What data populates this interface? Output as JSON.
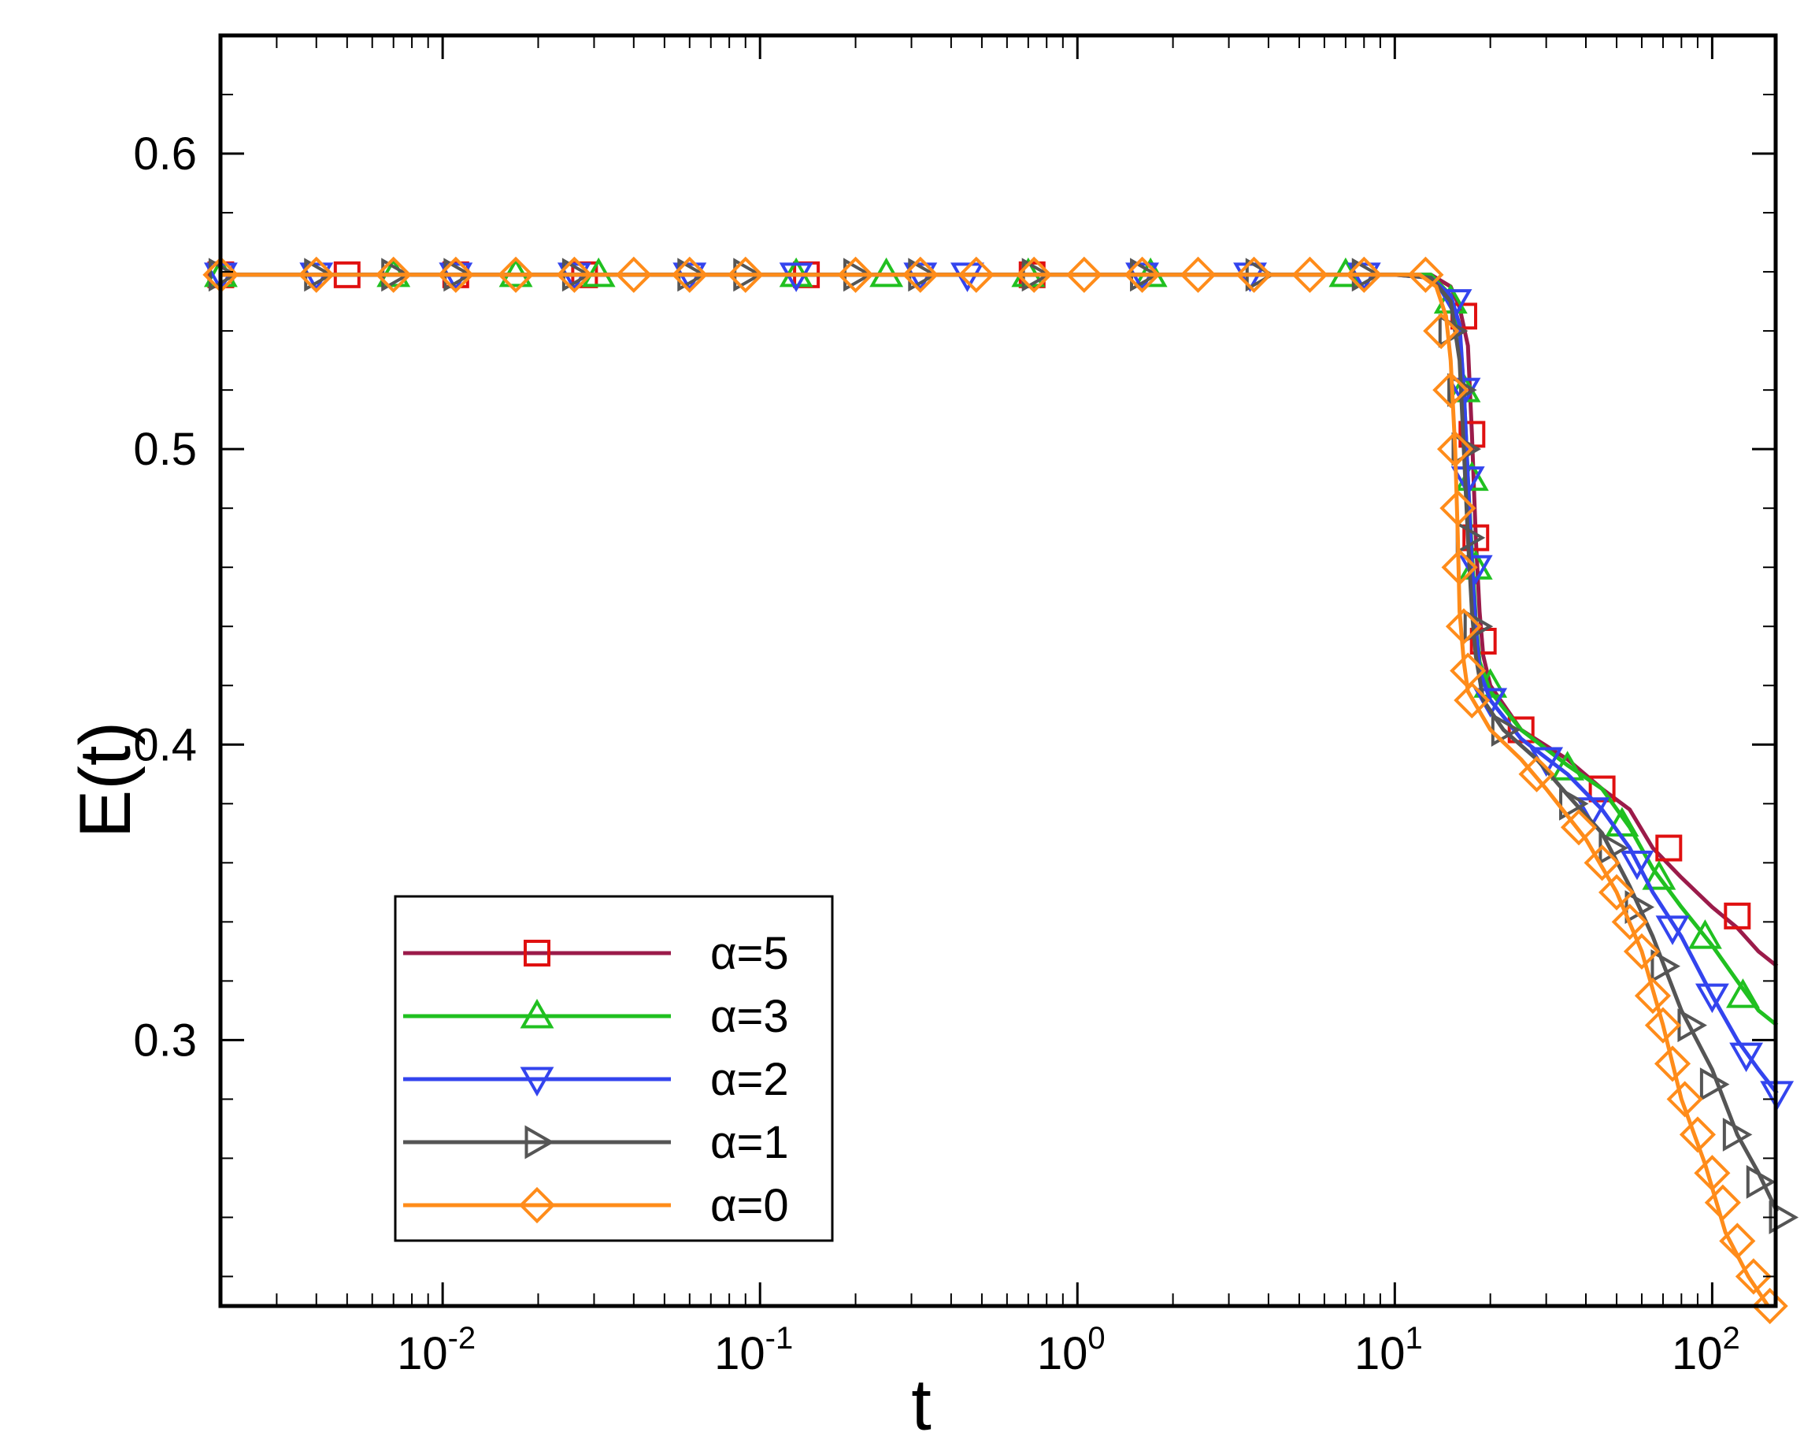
{
  "chart_data": {
    "type": "line",
    "title": "",
    "xlabel": "t",
    "ylabel": "E(t)",
    "xscale": "log",
    "xlim_exp": [
      -2.7,
      2.2
    ],
    "ylim": [
      0.21,
      0.64
    ],
    "grid": false,
    "legend_position": "bottom-left",
    "x_ticks": [
      {
        "base": "10",
        "exp": "-2",
        "value": 0.01
      },
      {
        "base": "10",
        "exp": "-1",
        "value": 0.1
      },
      {
        "base": "10",
        "exp": "0",
        "value": 1
      },
      {
        "base": "10",
        "exp": "1",
        "value": 10
      },
      {
        "base": "10",
        "exp": "2",
        "value": 100
      }
    ],
    "y_ticks": [
      {
        "label": "0.3",
        "value": 0.3
      },
      {
        "label": "0.4",
        "value": 0.4
      },
      {
        "label": "0.5",
        "value": 0.5
      },
      {
        "label": "0.6",
        "value": 0.6
      }
    ],
    "series": [
      {
        "name": "α=5",
        "color": "#9b1b4a",
        "marker_color": "#e01010",
        "marker": "square",
        "points": [
          [
            0.002,
            0.559
          ],
          [
            10,
            0.559
          ],
          [
            13,
            0.559
          ],
          [
            15,
            0.555
          ],
          [
            16,
            0.548
          ],
          [
            17,
            0.535
          ],
          [
            17.5,
            0.505
          ],
          [
            18,
            0.47
          ],
          [
            18.5,
            0.445
          ],
          [
            19,
            0.43
          ],
          [
            20,
            0.42
          ],
          [
            25,
            0.405
          ],
          [
            35,
            0.395
          ],
          [
            45,
            0.385
          ],
          [
            55,
            0.378
          ],
          [
            65,
            0.365
          ],
          [
            80,
            0.355
          ],
          [
            100,
            0.345
          ],
          [
            120,
            0.338
          ],
          [
            140,
            0.33
          ],
          [
            160,
            0.325
          ]
        ],
        "markers": [
          [
            0.002,
            0.559
          ],
          [
            0.005,
            0.559
          ],
          [
            0.011,
            0.559
          ],
          [
            0.028,
            0.559
          ],
          [
            0.14,
            0.559
          ],
          [
            0.72,
            0.559
          ],
          [
            16.5,
            0.545
          ],
          [
            17.5,
            0.505
          ],
          [
            18,
            0.47
          ],
          [
            19,
            0.435
          ],
          [
            25,
            0.405
          ],
          [
            45,
            0.385
          ],
          [
            73,
            0.365
          ],
          [
            120,
            0.342
          ]
        ]
      },
      {
        "name": "α=3",
        "color": "#20c020",
        "marker_color": "#20c020",
        "marker": "triangle-up",
        "points": [
          [
            0.002,
            0.559
          ],
          [
            10,
            0.559
          ],
          [
            13,
            0.559
          ],
          [
            15,
            0.552
          ],
          [
            16,
            0.54
          ],
          [
            16.5,
            0.52
          ],
          [
            17,
            0.49
          ],
          [
            17.5,
            0.465
          ],
          [
            18,
            0.442
          ],
          [
            18.5,
            0.428
          ],
          [
            20,
            0.418
          ],
          [
            25,
            0.405
          ],
          [
            35,
            0.393
          ],
          [
            45,
            0.385
          ],
          [
            55,
            0.372
          ],
          [
            65,
            0.358
          ],
          [
            80,
            0.345
          ],
          [
            100,
            0.332
          ],
          [
            120,
            0.32
          ],
          [
            140,
            0.31
          ],
          [
            160,
            0.305
          ]
        ],
        "markers": [
          [
            0.002,
            0.559
          ],
          [
            0.007,
            0.559
          ],
          [
            0.017,
            0.559
          ],
          [
            0.031,
            0.559
          ],
          [
            0.13,
            0.559
          ],
          [
            0.25,
            0.559
          ],
          [
            0.7,
            0.559
          ],
          [
            1.7,
            0.559
          ],
          [
            7,
            0.559
          ],
          [
            15,
            0.55
          ],
          [
            16.5,
            0.52
          ],
          [
            17.5,
            0.49
          ],
          [
            18,
            0.46
          ],
          [
            20,
            0.42
          ],
          [
            35,
            0.392
          ],
          [
            52,
            0.373
          ],
          [
            68,
            0.355
          ],
          [
            95,
            0.335
          ],
          [
            125,
            0.315
          ]
        ]
      },
      {
        "name": "α=2",
        "color": "#3344ee",
        "marker_color": "#3344ee",
        "marker": "triangle-down",
        "points": [
          [
            0.002,
            0.559
          ],
          [
            10,
            0.559
          ],
          [
            13,
            0.558
          ],
          [
            15,
            0.552
          ],
          [
            16,
            0.542
          ],
          [
            16.5,
            0.52
          ],
          [
            17,
            0.49
          ],
          [
            17.5,
            0.46
          ],
          [
            18,
            0.44
          ],
          [
            18.5,
            0.425
          ],
          [
            20,
            0.415
          ],
          [
            25,
            0.402
          ],
          [
            35,
            0.39
          ],
          [
            45,
            0.378
          ],
          [
            55,
            0.365
          ],
          [
            65,
            0.35
          ],
          [
            80,
            0.335
          ],
          [
            100,
            0.315
          ],
          [
            120,
            0.3
          ],
          [
            140,
            0.29
          ],
          [
            160,
            0.282
          ]
        ],
        "markers": [
          [
            0.002,
            0.559
          ],
          [
            0.004,
            0.559
          ],
          [
            0.011,
            0.559
          ],
          [
            0.026,
            0.559
          ],
          [
            0.06,
            0.559
          ],
          [
            0.13,
            0.559
          ],
          [
            0.32,
            0.559
          ],
          [
            0.45,
            0.559
          ],
          [
            1.6,
            0.559
          ],
          [
            3.5,
            0.559
          ],
          [
            8,
            0.559
          ],
          [
            15.5,
            0.55
          ],
          [
            16.5,
            0.52
          ],
          [
            17,
            0.49
          ],
          [
            18,
            0.46
          ],
          [
            20,
            0.415
          ],
          [
            30,
            0.395
          ],
          [
            42,
            0.378
          ],
          [
            58,
            0.36
          ],
          [
            75,
            0.338
          ],
          [
            100,
            0.315
          ],
          [
            128,
            0.295
          ],
          [
            160,
            0.282
          ]
        ]
      },
      {
        "name": "α=1",
        "color": "#555555",
        "marker_color": "#555555",
        "marker": "triangle-right",
        "points": [
          [
            0.002,
            0.559
          ],
          [
            10,
            0.559
          ],
          [
            13,
            0.558
          ],
          [
            15,
            0.55
          ],
          [
            16,
            0.53
          ],
          [
            16.5,
            0.5
          ],
          [
            17,
            0.47
          ],
          [
            17.5,
            0.445
          ],
          [
            18,
            0.43
          ],
          [
            19,
            0.415
          ],
          [
            22,
            0.405
          ],
          [
            28,
            0.395
          ],
          [
            35,
            0.383
          ],
          [
            45,
            0.37
          ],
          [
            55,
            0.352
          ],
          [
            65,
            0.335
          ],
          [
            80,
            0.31
          ],
          [
            100,
            0.29
          ],
          [
            120,
            0.268
          ],
          [
            140,
            0.255
          ],
          [
            160,
            0.242
          ]
        ],
        "markers": [
          [
            0.002,
            0.559
          ],
          [
            0.004,
            0.559
          ],
          [
            0.007,
            0.559
          ],
          [
            0.011,
            0.559
          ],
          [
            0.026,
            0.559
          ],
          [
            0.06,
            0.559
          ],
          [
            0.09,
            0.559
          ],
          [
            0.2,
            0.559
          ],
          [
            0.32,
            0.559
          ],
          [
            0.73,
            0.559
          ],
          [
            1.6,
            0.559
          ],
          [
            3.7,
            0.559
          ],
          [
            8,
            0.559
          ],
          [
            15,
            0.54
          ],
          [
            16,
            0.52
          ],
          [
            16.5,
            0.5
          ],
          [
            17,
            0.47
          ],
          [
            18,
            0.44
          ],
          [
            22,
            0.405
          ],
          [
            36,
            0.38
          ],
          [
            48,
            0.365
          ],
          [
            58,
            0.345
          ],
          [
            70,
            0.325
          ],
          [
            85,
            0.305
          ],
          [
            100,
            0.285
          ],
          [
            118,
            0.268
          ],
          [
            140,
            0.252
          ],
          [
            165,
            0.24
          ]
        ]
      },
      {
        "name": "α=0",
        "color": "#ff8c1a",
        "marker_color": "#ff8c1a",
        "marker": "diamond",
        "points": [
          [
            0.002,
            0.559
          ],
          [
            10,
            0.559
          ],
          [
            12,
            0.559
          ],
          [
            13.5,
            0.555
          ],
          [
            14.5,
            0.545
          ],
          [
            15,
            0.53
          ],
          [
            15.5,
            0.5
          ],
          [
            15.8,
            0.47
          ],
          [
            16,
            0.445
          ],
          [
            16.5,
            0.428
          ],
          [
            17,
            0.418
          ],
          [
            20,
            0.405
          ],
          [
            25,
            0.395
          ],
          [
            30,
            0.385
          ],
          [
            40,
            0.368
          ],
          [
            50,
            0.35
          ],
          [
            60,
            0.33
          ],
          [
            70,
            0.305
          ],
          [
            80,
            0.28
          ],
          [
            95,
            0.258
          ],
          [
            110,
            0.235
          ],
          [
            130,
            0.22
          ],
          [
            150,
            0.21
          ]
        ],
        "markers": [
          [
            0.002,
            0.559
          ],
          [
            0.004,
            0.559
          ],
          [
            0.007,
            0.559
          ],
          [
            0.011,
            0.559
          ],
          [
            0.017,
            0.559
          ],
          [
            0.026,
            0.559
          ],
          [
            0.04,
            0.559
          ],
          [
            0.06,
            0.559
          ],
          [
            0.09,
            0.559
          ],
          [
            0.2,
            0.559
          ],
          [
            0.32,
            0.559
          ],
          [
            0.48,
            0.559
          ],
          [
            0.73,
            0.559
          ],
          [
            1.05,
            0.559
          ],
          [
            1.6,
            0.559
          ],
          [
            2.4,
            0.559
          ],
          [
            3.6,
            0.559
          ],
          [
            5.4,
            0.559
          ],
          [
            8,
            0.559
          ],
          [
            12.5,
            0.559
          ],
          [
            14,
            0.54
          ],
          [
            15,
            0.52
          ],
          [
            15.5,
            0.5
          ],
          [
            15.8,
            0.48
          ],
          [
            16,
            0.46
          ],
          [
            16.5,
            0.44
          ],
          [
            17,
            0.425
          ],
          [
            17.5,
            0.415
          ],
          [
            28,
            0.39
          ],
          [
            38,
            0.372
          ],
          [
            45,
            0.36
          ],
          [
            50,
            0.35
          ],
          [
            55,
            0.34
          ],
          [
            60,
            0.33
          ],
          [
            65,
            0.315
          ],
          [
            70,
            0.305
          ],
          [
            75,
            0.292
          ],
          [
            82,
            0.28
          ],
          [
            90,
            0.268
          ],
          [
            100,
            0.255
          ],
          [
            108,
            0.245
          ],
          [
            120,
            0.232
          ],
          [
            135,
            0.22
          ],
          [
            152,
            0.21
          ]
        ]
      }
    ]
  }
}
